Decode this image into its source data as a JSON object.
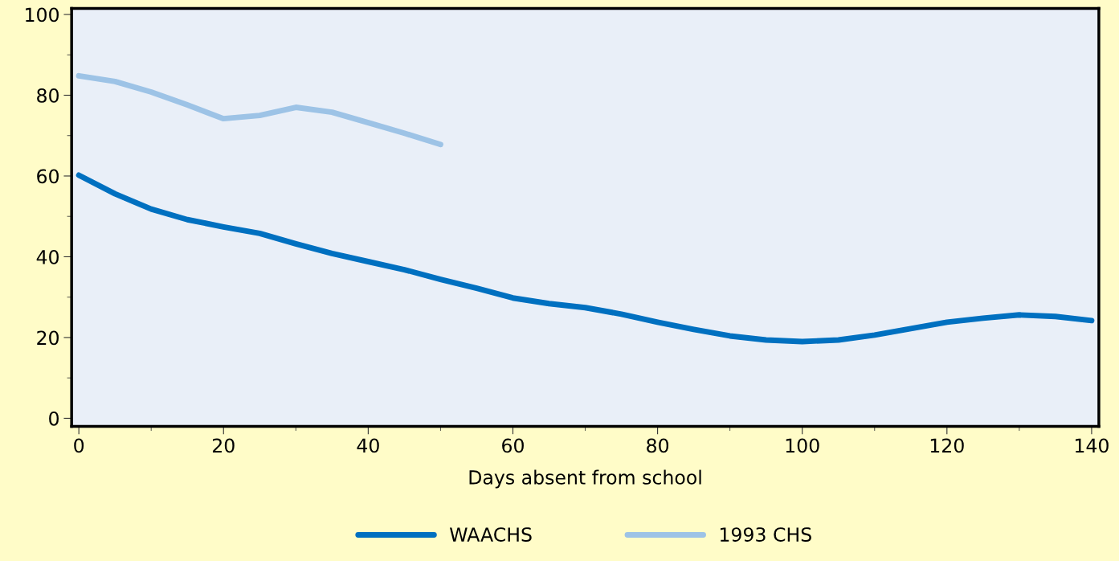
{
  "chart_data": {
    "type": "line",
    "xlabel": "Days absent from school",
    "xlim": [
      -1,
      141
    ],
    "ylim": [
      -2,
      101.5
    ],
    "xticks": [
      0,
      {
        "value": 10,
        "label": null
      },
      20,
      {
        "value": 30,
        "label": null
      },
      40,
      {
        "value": 50,
        "label": null
      },
      60,
      {
        "value": 70,
        "label": null
      },
      80,
      {
        "value": 90,
        "label": null
      },
      100,
      {
        "value": 110,
        "label": null
      },
      120,
      {
        "value": 130,
        "label": null
      },
      140
    ],
    "yticks": [
      0,
      {
        "value": 10,
        "label": null
      },
      20,
      {
        "value": 30,
        "label": null
      },
      40,
      {
        "value": 50,
        "label": null
      },
      60,
      {
        "value": 70,
        "label": null
      },
      80,
      {
        "value": 90,
        "label": null
      },
      100
    ],
    "grid": false,
    "legend": "bottom",
    "marker": "none",
    "line_style": "solid",
    "series": [
      {
        "name": "WAACHS",
        "color": "#0070c0",
        "x": [
          0,
          5,
          10,
          15,
          20,
          25,
          30,
          35,
          40,
          45,
          50,
          55,
          60,
          65,
          70,
          75,
          80,
          85,
          90,
          95,
          100,
          105,
          110,
          115,
          120,
          125,
          130,
          135,
          140
        ],
        "values": [
          60.2,
          55.6,
          51.8,
          49.2,
          47.4,
          45.8,
          43.2,
          40.8,
          38.8,
          36.8,
          34.4,
          32.2,
          29.8,
          28.4,
          27.4,
          25.8,
          23.8,
          22,
          20.4,
          19.4,
          19,
          19.4,
          20.6,
          22.2,
          23.8,
          24.8,
          25.6,
          25.2,
          24.2
        ]
      },
      {
        "name": "1993 CHS",
        "color": "#9dc3e6",
        "x": [
          0,
          5,
          10,
          15,
          20,
          25,
          30,
          35,
          40,
          45,
          50
        ],
        "values": [
          84.8,
          83.4,
          80.8,
          77.6,
          74.2,
          75,
          77,
          75.8,
          73.2,
          70.6,
          67.8
        ]
      }
    ]
  }
}
